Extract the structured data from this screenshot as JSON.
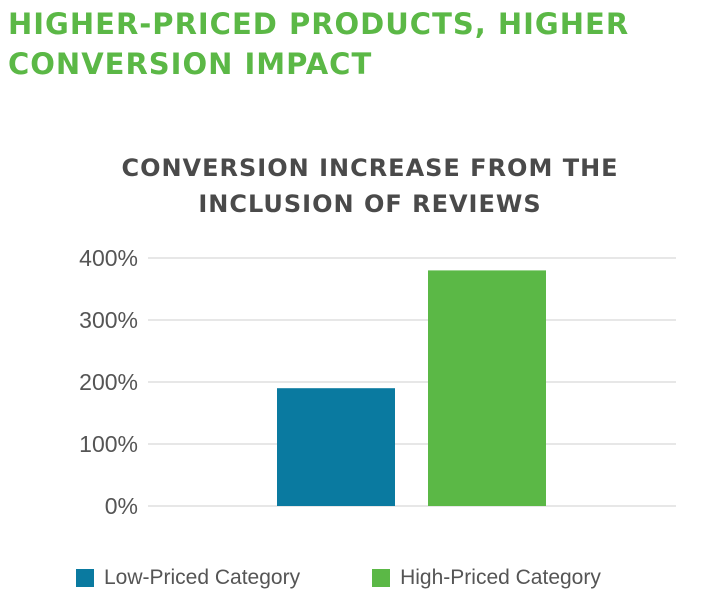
{
  "headline": "HIGHER-PRICED PRODUCTS, HIGHER CONVERSION IMPACT",
  "colors": {
    "headline": "#5bb846",
    "title": "#4a4a4a",
    "grid": "#cfcfcf",
    "low_priced": "#0a7aa0",
    "high_priced": "#5bb846"
  },
  "chart_data": {
    "type": "bar",
    "title": "CONVERSION INCREASE FROM THE INCLUSION OF REVIEWS",
    "xlabel": "",
    "ylabel": "",
    "categories": [
      "Low-Priced Category",
      "High-Priced Category"
    ],
    "values": [
      190,
      380
    ],
    "value_unit": "%",
    "ylim": [
      0,
      400
    ],
    "yticks": [
      0,
      100,
      200,
      300,
      400
    ],
    "ytick_labels": [
      "0%",
      "100%",
      "200%",
      "300%",
      "400%"
    ],
    "grid": true,
    "legend_position": "bottom",
    "bar_colors": [
      "#0a7aa0",
      "#5bb846"
    ]
  }
}
